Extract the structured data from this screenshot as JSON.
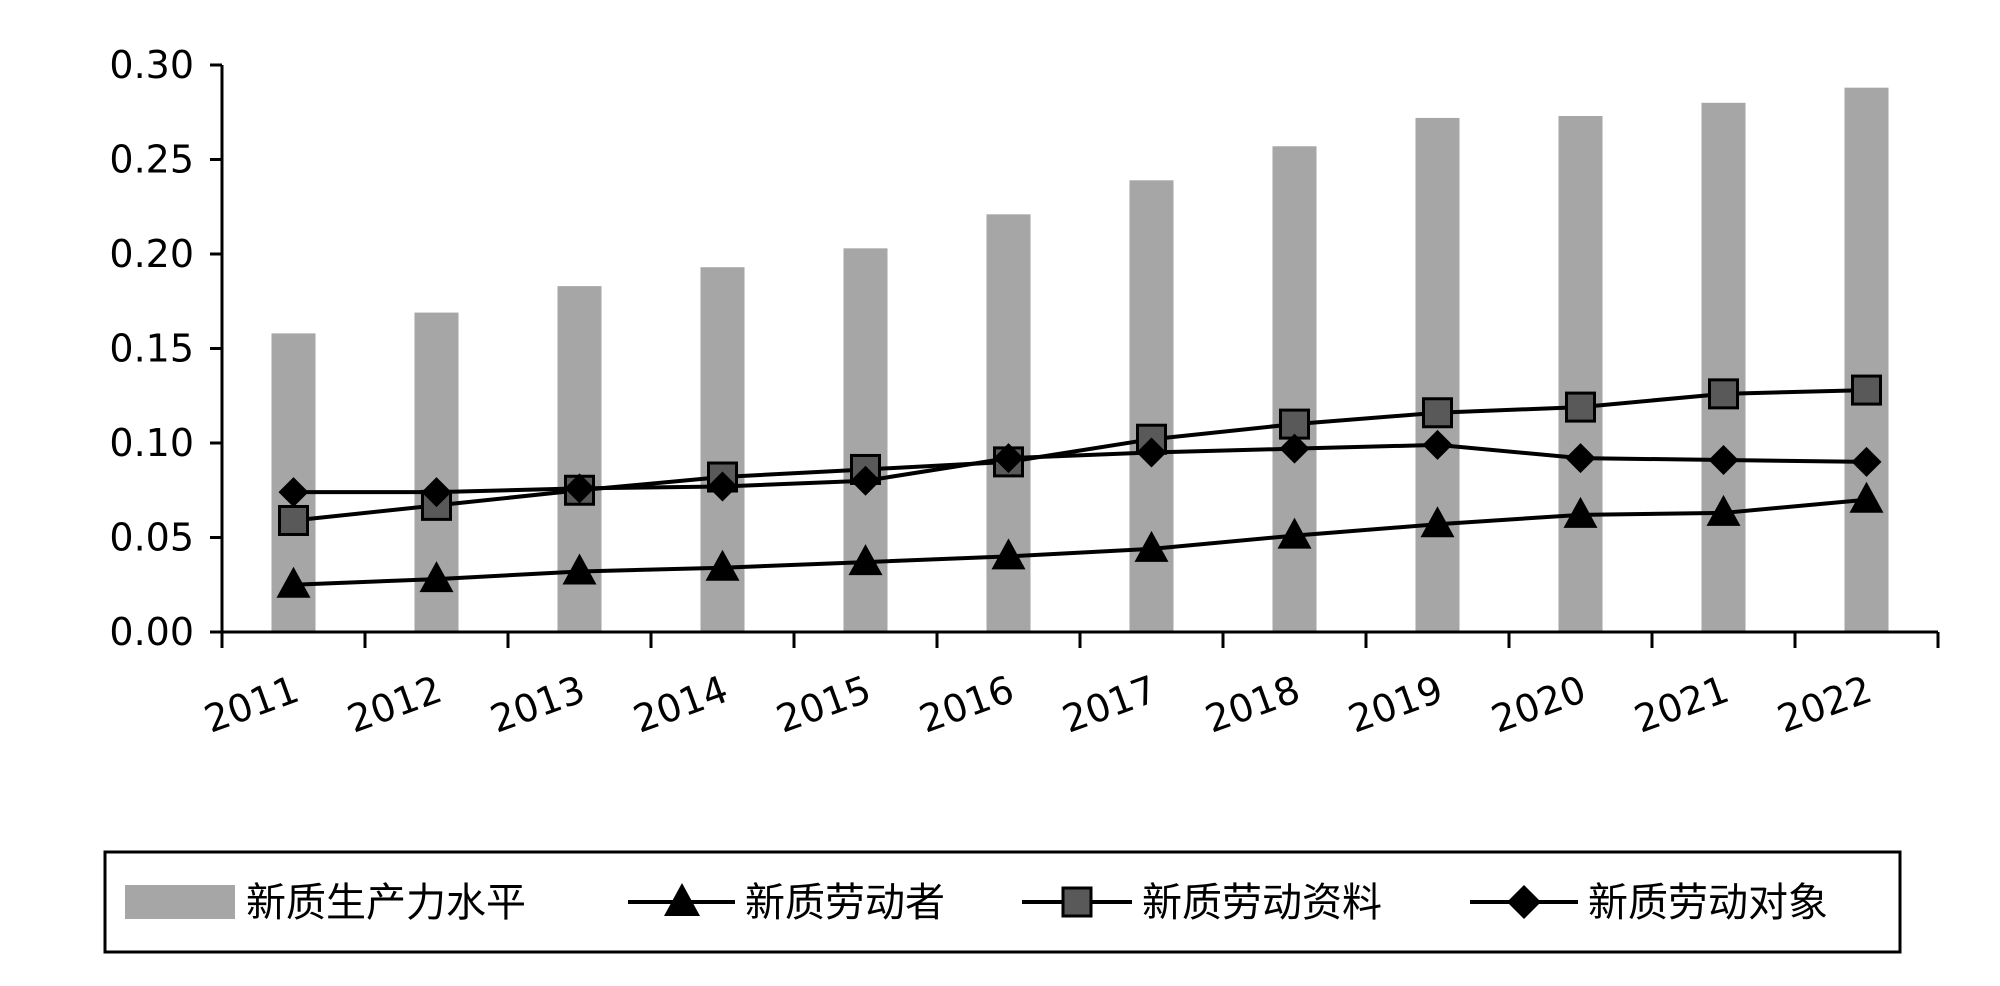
{
  "chart_data": {
    "type": "bar",
    "categories": [
      "2011",
      "2012",
      "2013",
      "2014",
      "2015",
      "2016",
      "2017",
      "2018",
      "2019",
      "2020",
      "2021",
      "2022"
    ],
    "ylim": [
      0,
      0.3
    ],
    "yticks": [
      "0.00",
      "0.05",
      "0.10",
      "0.15",
      "0.20",
      "0.25",
      "0.30"
    ],
    "grid": false,
    "legend_position": "bottom",
    "series": [
      {
        "name": "新质生产力水平",
        "kind": "bar",
        "color": "#a6a6a6",
        "values": [
          0.158,
          0.169,
          0.183,
          0.193,
          0.203,
          0.221,
          0.239,
          0.257,
          0.272,
          0.273,
          0.28,
          0.288
        ]
      },
      {
        "name": "新质劳动者",
        "kind": "line",
        "marker": "triangle",
        "color": "#000000",
        "values": [
          0.025,
          0.028,
          0.032,
          0.034,
          0.037,
          0.04,
          0.044,
          0.051,
          0.057,
          0.062,
          0.063,
          0.07
        ]
      },
      {
        "name": "新质劳动资料",
        "kind": "line",
        "marker": "square",
        "color": "#595959",
        "values": [
          0.059,
          0.067,
          0.075,
          0.082,
          0.086,
          0.09,
          0.102,
          0.11,
          0.116,
          0.119,
          0.126,
          0.128
        ]
      },
      {
        "name": "新质劳动对象",
        "kind": "line",
        "marker": "diamond",
        "color": "#000000",
        "values": [
          0.074,
          0.074,
          0.076,
          0.077,
          0.08,
          0.092,
          0.095,
          0.097,
          0.099,
          0.092,
          0.091,
          0.09
        ]
      }
    ]
  }
}
